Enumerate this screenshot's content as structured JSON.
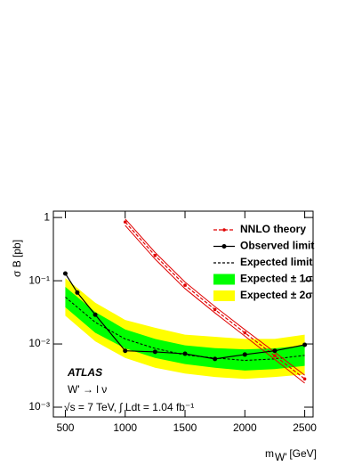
{
  "chart_data": {
    "type": "line",
    "ylabel": "σ B [pb]",
    "xlabel_main": "m",
    "xlabel_sub": "W'",
    "xlabel_unit": "[GeV]",
    "annotations": [
      "ATLAS",
      "W' → l ν",
      "√s = 7 TeV, ∫ Ldt = 1.04 fb⁻¹"
    ],
    "log_y": true,
    "xlim": [
      400,
      2570
    ],
    "ylim": [
      0.0007,
      1.26
    ],
    "xticks": [
      500,
      1000,
      1500,
      2000,
      2500
    ],
    "yticks": [
      {
        "value": 1,
        "label": "1"
      },
      {
        "value": 0.1,
        "label": "10⁻¹"
      },
      {
        "value": 0.01,
        "label": "10⁻²"
      },
      {
        "value": 0.001,
        "label": "10⁻³"
      }
    ],
    "legend": "upper right",
    "series": [
      {
        "name": "NNLO theory",
        "color": "#e00000",
        "x": [
          1000,
          1250,
          1500,
          1750,
          2000,
          2250,
          2500
        ],
        "values": [
          0.85,
          0.25,
          0.085,
          0.035,
          0.015,
          0.0065,
          0.0028
        ],
        "low": [
          0.75,
          0.22,
          0.075,
          0.031,
          0.0133,
          0.0057,
          0.0024
        ],
        "high": [
          0.95,
          0.28,
          0.095,
          0.039,
          0.0168,
          0.0074,
          0.0032
        ]
      },
      {
        "name": "Observed limit",
        "color": "#000000",
        "x": [
          500,
          600,
          750,
          1000,
          1250,
          1500,
          1750,
          2000,
          2250,
          2500
        ],
        "values": [
          0.13,
          0.065,
          0.029,
          0.0078,
          0.0075,
          0.007,
          0.0058,
          0.0068,
          0.0078,
          0.0097
        ]
      },
      {
        "name": "Expected  limit",
        "color": "#000000",
        "x": [
          500,
          750,
          1000,
          1250,
          1500,
          1750,
          2000,
          2250,
          2500
        ],
        "values": [
          0.055,
          0.022,
          0.012,
          0.0085,
          0.0067,
          0.006,
          0.0055,
          0.0058,
          0.0066
        ]
      },
      {
        "name": "Expected ± 1σ",
        "color": "#00ff00",
        "x": [
          500,
          750,
          1000,
          1250,
          1500,
          1750,
          2000,
          2250,
          2500
        ],
        "low": [
          0.038,
          0.015,
          0.0085,
          0.006,
          0.0048,
          0.0042,
          0.0038,
          0.004,
          0.0045
        ],
        "high": [
          0.08,
          0.032,
          0.017,
          0.012,
          0.0095,
          0.0086,
          0.0082,
          0.0085,
          0.0095
        ]
      },
      {
        "name": "Expected ± 2σ",
        "color": "#ffff00",
        "x": [
          500,
          750,
          1000,
          1250,
          1500,
          1750,
          2000,
          2250,
          2500
        ],
        "low": [
          0.028,
          0.011,
          0.006,
          0.0042,
          0.0034,
          0.003,
          0.0028,
          0.003,
          0.0033
        ],
        "high": [
          0.11,
          0.045,
          0.024,
          0.018,
          0.014,
          0.013,
          0.012,
          0.012,
          0.014
        ]
      }
    ]
  }
}
